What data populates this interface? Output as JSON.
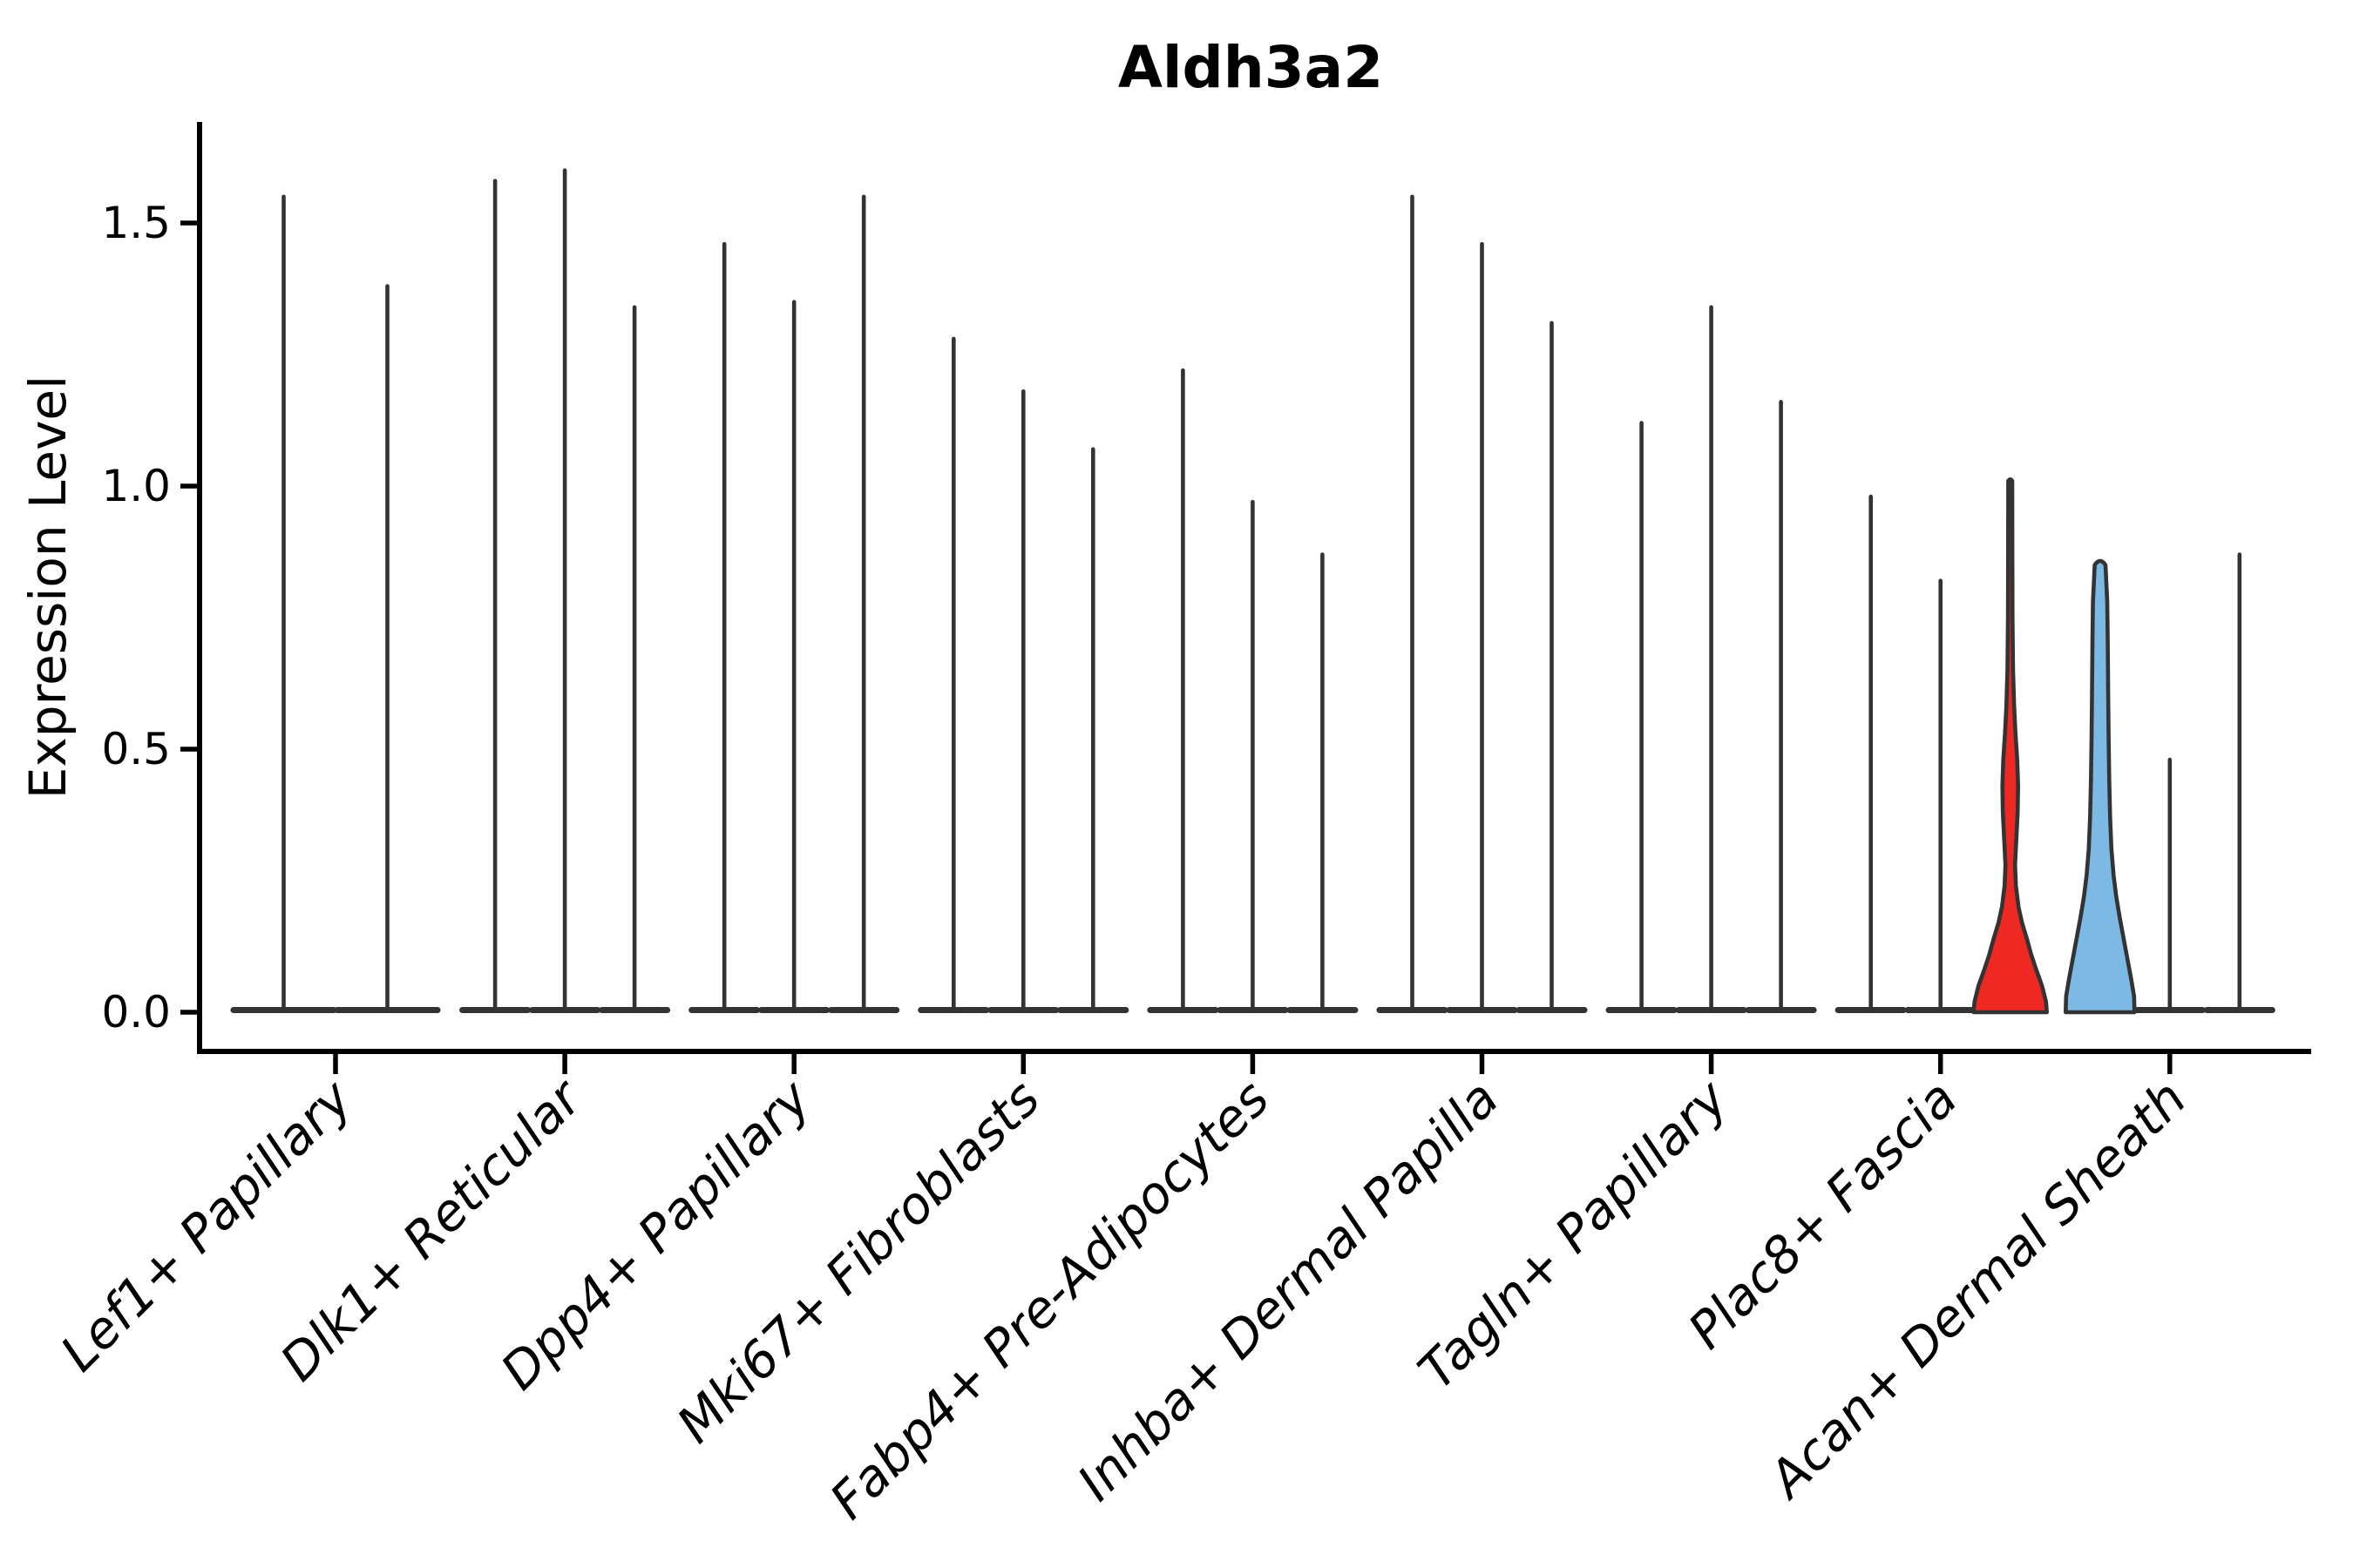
{
  "chart_data": {
    "type": "violin",
    "title": "Aldh3a2",
    "xlabel": "",
    "ylabel": "Expression Level",
    "y_ticks": [
      0.0,
      0.5,
      1.0,
      1.5
    ],
    "y_tick_labels": [
      "0.0",
      "0.5",
      "1.0",
      "1.5"
    ],
    "ylim": [
      0,
      1.69
    ],
    "grid": false,
    "legend": "none",
    "categories": [
      "Lef1+ Papillary",
      "Dlk1+ Reticular",
      "Dpp4+ Papillary",
      "Mki67+ Fibroblasts",
      "Fabp4+ Pre-Adipocytes",
      "Inhba+ Dermal Papilla",
      "Tagln+ Papillary",
      "Plac8+ Fascia",
      "Acan+ Dermal Sheath"
    ],
    "series": [
      {
        "category": "Lef1+ Papillary",
        "violins": [
          {
            "max_expression": 1.55
          },
          {
            "max_expression": 1.38
          }
        ]
      },
      {
        "category": "Dlk1+ Reticular",
        "violins": [
          {
            "max_expression": 1.58
          },
          {
            "max_expression": 1.6
          },
          {
            "max_expression": 1.34
          }
        ]
      },
      {
        "category": "Dpp4+ Papillary",
        "violins": [
          {
            "max_expression": 1.46
          },
          {
            "max_expression": 1.35
          },
          {
            "max_expression": 1.55
          }
        ]
      },
      {
        "category": "Mki67+ Fibroblasts",
        "violins": [
          {
            "max_expression": 1.28
          },
          {
            "max_expression": 1.18
          },
          {
            "max_expression": 1.07
          }
        ]
      },
      {
        "category": "Fabp4+ Pre-Adipocytes",
        "violins": [
          {
            "max_expression": 1.22
          },
          {
            "max_expression": 0.97
          },
          {
            "max_expression": 0.87
          }
        ]
      },
      {
        "category": "Inhba+ Dermal Papilla",
        "violins": [
          {
            "max_expression": 1.55
          },
          {
            "max_expression": 1.46
          },
          {
            "max_expression": 1.31
          }
        ]
      },
      {
        "category": "Tagln+ Papillary",
        "violins": [
          {
            "max_expression": 1.12
          },
          {
            "max_expression": 1.34
          },
          {
            "max_expression": 1.16
          }
        ]
      },
      {
        "category": "Plac8+ Fascia",
        "violins": [
          {
            "max_expression": 0.98
          },
          {
            "max_expression": 0.82
          },
          {
            "max_expression": 1.01,
            "fill": "#EE2823",
            "note": "expressed violin with visible body",
            "profile": [
              [
                0.0,
                42
              ],
              [
                0.02,
                41
              ],
              [
                0.05,
                36.5
              ],
              [
                0.08,
                30
              ],
              [
                0.11,
                24
              ],
              [
                0.14,
                19
              ],
              [
                0.17,
                13.5
              ],
              [
                0.2,
                9.5
              ],
              [
                0.24,
                6.5
              ],
              [
                0.28,
                5.5
              ],
              [
                0.33,
                7
              ],
              [
                0.38,
                8.5
              ],
              [
                0.43,
                9
              ],
              [
                0.48,
                8
              ],
              [
                0.53,
                6
              ],
              [
                0.58,
                4.5
              ],
              [
                0.65,
                3.2
              ],
              [
                0.75,
                2.6
              ],
              [
                0.88,
                2.4
              ],
              [
                1.01,
                2.3
              ]
            ]
          }
        ]
      },
      {
        "category": "Acan+ Dermal Sheath",
        "violins": [
          {
            "max_expression": 0.85,
            "fill": "#7CB9E5",
            "note": "expressed violin with visible body",
            "profile": [
              [
                0.0,
                39.5
              ],
              [
                0.03,
                39
              ],
              [
                0.06,
                36
              ],
              [
                0.1,
                31.5
              ],
              [
                0.14,
                27
              ],
              [
                0.18,
                22.5
              ],
              [
                0.22,
                18.5
              ],
              [
                0.26,
                15.5
              ],
              [
                0.31,
                13
              ],
              [
                0.37,
                11.5
              ],
              [
                0.44,
                10.5
              ],
              [
                0.52,
                9.8
              ],
              [
                0.6,
                9.3
              ],
              [
                0.7,
                8.8
              ],
              [
                0.78,
                8.2
              ],
              [
                0.85,
                6.2
              ]
            ]
          },
          {
            "max_expression": 0.48
          },
          {
            "max_expression": 0.87
          }
        ]
      }
    ],
    "style": {
      "background": "#FFFFFF",
      "violin_outline_color": "#333333",
      "axis_color": "#000000",
      "highlight_red": "#EE2823",
      "highlight_blue": "#7CB9E5"
    }
  }
}
